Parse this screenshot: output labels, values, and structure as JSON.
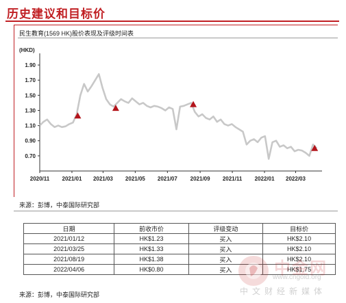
{
  "page": {
    "title": "历史建议和目标价",
    "chart_caption": "民生教育(1569 HK)股价表现及评级时间表",
    "source_top": "来源：彭博，中泰国际研究部",
    "source_bottom": "来源：彭博，中泰国际研究部"
  },
  "watermark": {
    "text": "中金网",
    "url": "www.cngold.org",
    "sub": "中文财经新媒体"
  },
  "colors": {
    "accent": "#c01e22",
    "line": "#c8c8c8",
    "marker": "#b3141b"
  },
  "chart_data": {
    "type": "line",
    "title": "民生教育(1569 HK)股价表现及评级时间表",
    "ylabel": "(HKD)",
    "ylim": [
      0.5,
      2.0
    ],
    "yticks": [
      0.7,
      0.9,
      1.1,
      1.3,
      1.5,
      1.7,
      1.9
    ],
    "ytick_labels": [
      "0.70",
      "0.90",
      "1.10",
      "1.30",
      "1.50",
      "1.70",
      "1.90"
    ],
    "xlim": [
      "2020-11-01",
      "2022-04-20"
    ],
    "xticks": [
      "2020-11-01",
      "2021-01-01",
      "2021-03-01",
      "2021-05-01",
      "2021-07-01",
      "2021-09-01",
      "2021-11-01",
      "2022-01-01",
      "2022-03-01"
    ],
    "xtick_labels": [
      "2020/11",
      "2021/01",
      "2021/03",
      "2021/05",
      "2021/07",
      "2021/09",
      "2021/11",
      "2022/01",
      "2022/03"
    ],
    "grid": false,
    "series": [
      {
        "x": [
          "2020-11-01",
          "2020-11-08",
          "2020-11-15",
          "2020-11-22",
          "2020-11-29",
          "2020-12-06",
          "2020-12-13",
          "2020-12-20",
          "2020-12-27",
          "2021-01-03",
          "2021-01-10",
          "2021-01-17",
          "2021-01-24",
          "2021-01-31",
          "2021-02-07",
          "2021-02-14",
          "2021-02-21",
          "2021-02-28",
          "2021-03-07",
          "2021-03-14",
          "2021-03-21",
          "2021-03-28",
          "2021-04-04",
          "2021-04-11",
          "2021-04-18",
          "2021-04-25",
          "2021-05-02",
          "2021-05-09",
          "2021-05-16",
          "2021-05-23",
          "2021-05-30",
          "2021-06-06",
          "2021-06-13",
          "2021-06-20",
          "2021-06-27",
          "2021-07-04",
          "2021-07-11",
          "2021-07-18",
          "2021-07-25",
          "2021-08-01",
          "2021-08-08",
          "2021-08-15",
          "2021-08-22",
          "2021-08-29",
          "2021-09-05",
          "2021-09-12",
          "2021-09-19",
          "2021-09-26",
          "2021-10-03",
          "2021-10-10",
          "2021-10-17",
          "2021-10-24",
          "2021-10-31",
          "2021-11-07",
          "2021-11-14",
          "2021-11-21",
          "2021-11-28",
          "2021-12-05",
          "2021-12-12",
          "2021-12-19",
          "2021-12-26",
          "2022-01-02",
          "2022-01-09",
          "2022-01-16",
          "2022-01-23",
          "2022-01-30",
          "2022-02-06",
          "2022-02-13",
          "2022-02-20",
          "2022-02-27",
          "2022-03-06",
          "2022-03-13",
          "2022-03-20",
          "2022-03-27",
          "2022-04-03",
          "2022-04-10"
        ],
        "values": [
          1.1,
          1.15,
          1.18,
          1.12,
          1.08,
          1.1,
          1.08,
          1.09,
          1.12,
          1.14,
          1.25,
          1.5,
          1.65,
          1.55,
          1.62,
          1.7,
          1.78,
          1.6,
          1.45,
          1.38,
          1.35,
          1.4,
          1.45,
          1.42,
          1.4,
          1.46,
          1.42,
          1.38,
          1.4,
          1.36,
          1.34,
          1.36,
          1.35,
          1.33,
          1.3,
          1.34,
          1.32,
          1.05,
          1.35,
          1.36,
          1.38,
          1.4,
          1.28,
          1.22,
          1.25,
          1.2,
          1.18,
          1.22,
          1.15,
          1.18,
          1.12,
          1.1,
          1.12,
          1.08,
          1.05,
          1.02,
          0.85,
          0.9,
          0.92,
          0.88,
          0.94,
          0.96,
          0.66,
          0.88,
          0.9,
          0.82,
          0.84,
          0.8,
          0.82,
          0.76,
          0.78,
          0.77,
          0.74,
          0.7,
          0.85,
          0.8
        ]
      }
    ],
    "rating_markers": [
      {
        "x": "2021-01-12",
        "y": 1.23
      },
      {
        "x": "2021-03-25",
        "y": 1.33
      },
      {
        "x": "2021-08-19",
        "y": 1.38
      },
      {
        "x": "2022-04-06",
        "y": 0.8
      }
    ]
  },
  "table": {
    "headers": [
      "日期",
      "前收市价",
      "评级变动",
      "目标价"
    ],
    "rows": [
      [
        "2021/01/12",
        "HK$1.23",
        "买入",
        "HK$2.10"
      ],
      [
        "2021/03/25",
        "HK$1.33",
        "买入",
        "HK$2.10"
      ],
      [
        "2021/08/19",
        "HK$1.38",
        "买入",
        "HK$2.10"
      ],
      [
        "2022/04/06",
        "HK$0.80",
        "买入",
        "HK$1.75"
      ]
    ]
  }
}
